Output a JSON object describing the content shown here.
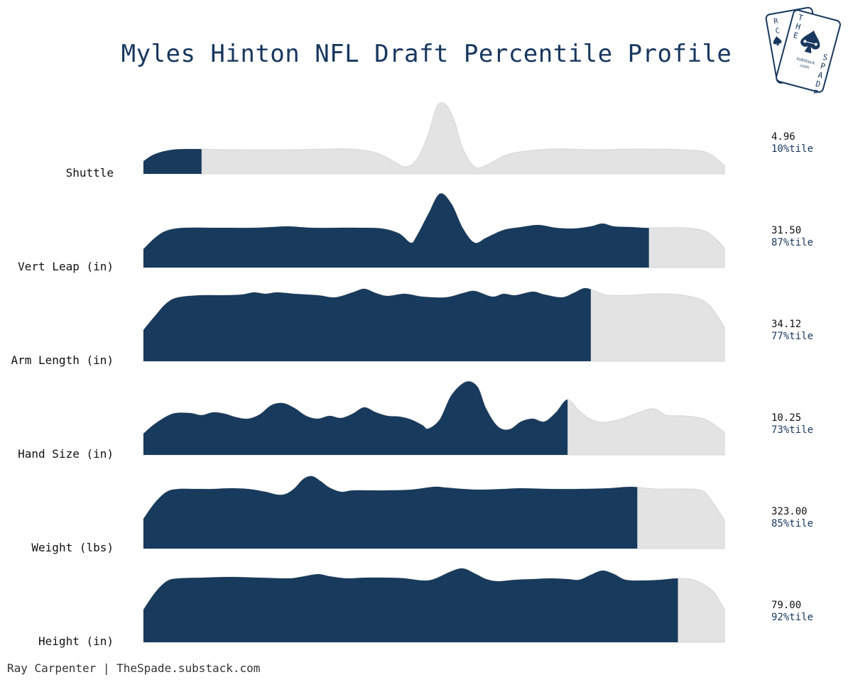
{
  "title": "Myles Hinton NFL Draft Percentile Profile",
  "footer": "Ray Carpenter | TheSpade.substack.com",
  "logo": {
    "card_back_letters": [
      "R",
      "C"
    ],
    "card_front_letters": [
      "T",
      "H",
      "E",
      "S",
      "P",
      "A",
      "D",
      "E"
    ],
    "card_text": [
      "substack",
      ".com"
    ]
  },
  "colors": {
    "fill": "#183a5c",
    "background_density": "#e3e3e3",
    "title": "#17375e",
    "percentile_text": "#17375e"
  },
  "chart_data": {
    "type": "ridgeline",
    "percentile_suffix": "%tile",
    "metrics": [
      {
        "label": "Shuttle",
        "value": "4.96",
        "percentile": 10
      },
      {
        "label": "Vert Leap (in)",
        "value": "31.50",
        "percentile": 87
      },
      {
        "label": "Arm Length (in)",
        "value": "34.12",
        "percentile": 77
      },
      {
        "label": "Hand Size (in)",
        "value": "10.25",
        "percentile": 73
      },
      {
        "label": "Weight (lbs)",
        "value": "323.00",
        "percentile": 85
      },
      {
        "label": "Height (in)",
        "value": "79.00",
        "percentile": 92
      }
    ]
  }
}
